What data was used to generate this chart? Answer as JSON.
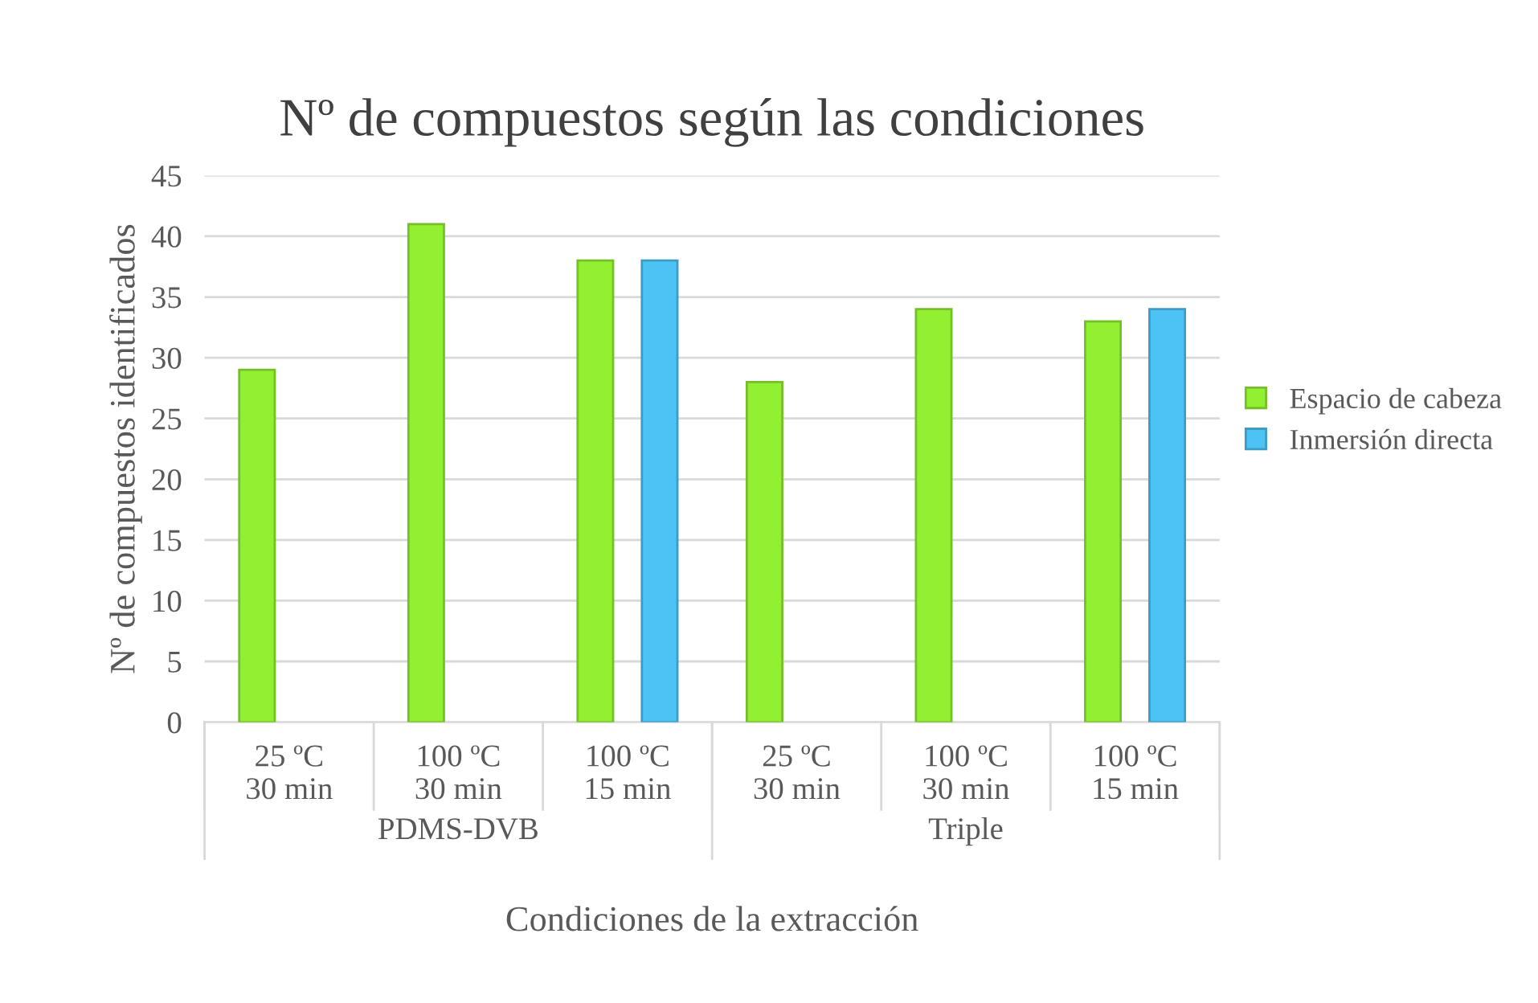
{
  "chart_data": {
    "type": "bar",
    "title": "Nº de compuestos según las condiciones",
    "xlabel": "Condiciones de la extracción",
    "ylabel": "Nº de compuestos identificados",
    "categories": [
      "25 ºC\n30 min",
      "100 ºC\n30 min",
      "100 ºC\n15 min",
      "25 ºC\n30 min",
      "100 ºC\n30 min",
      "100 ºC\n15 min"
    ],
    "annotations": [
      "PDMS-DVB",
      "Triple"
    ],
    "series": [
      {
        "name": "Espacio de cabeza",
        "color": "#92f032",
        "values": [
          29,
          41,
          38,
          28,
          34,
          33
        ]
      },
      {
        "name": "Inmersión directa",
        "color": "#4dc3f5",
        "values": [
          null,
          null,
          38,
          null,
          null,
          34
        ]
      }
    ],
    "ylim": [
      0,
      45
    ],
    "yticks": [
      0,
      5,
      10,
      15,
      20,
      25,
      30,
      35,
      40,
      45
    ],
    "grid": "y",
    "legend": "right"
  }
}
